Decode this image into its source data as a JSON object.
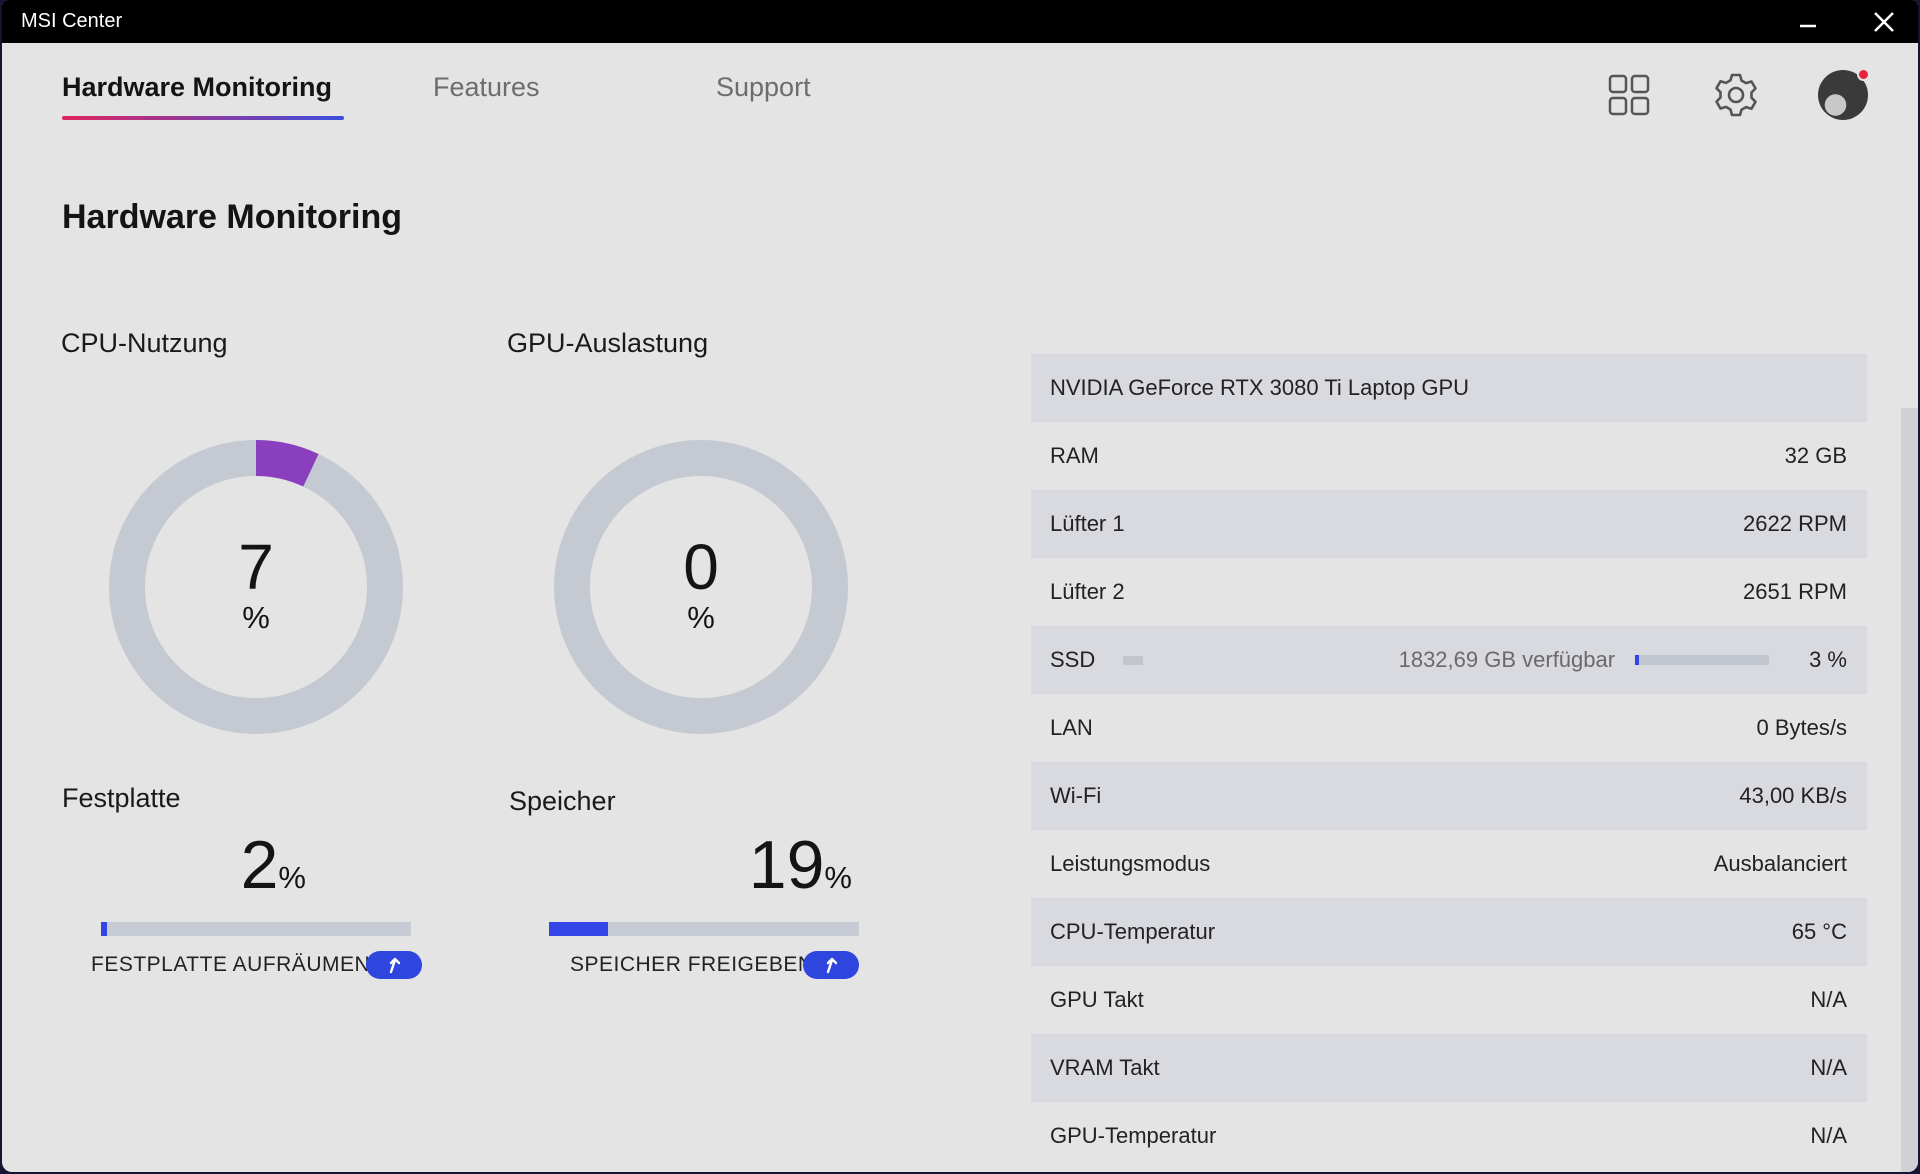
{
  "window": {
    "title": "MSI Center"
  },
  "tabs": [
    {
      "label": "Hardware Monitoring",
      "active": true
    },
    {
      "label": "Features",
      "active": false
    },
    {
      "label": "Support",
      "active": false
    }
  ],
  "header_icons": [
    "grid-icon",
    "gear-icon",
    "avatar"
  ],
  "page_title": "Hardware Monitoring",
  "cpu": {
    "title": "CPU-Nutzung",
    "value": "7",
    "unit": "%",
    "percent": 7,
    "accent": "#8a3fbf"
  },
  "gpu": {
    "title": "GPU-Auslastung",
    "value": "0",
    "unit": "%",
    "percent": 0
  },
  "disk": {
    "title": "Festplatte",
    "value": "2",
    "unit": "%",
    "percent": 2,
    "action": "FESTPLATTE AUFRÄUMEN"
  },
  "memory": {
    "title": "Speicher",
    "value": "19",
    "unit": "%",
    "percent": 19,
    "action": "SPEICHER FREIGEBEN"
  },
  "info": {
    "gpu_name": "NVIDIA GeForce RTX 3080 Ti Laptop GPU",
    "rows": [
      {
        "label": "RAM",
        "value": "32 GB"
      },
      {
        "label": "Lüfter 1",
        "value": "2622 RPM"
      },
      {
        "label": "Lüfter 2",
        "value": "2651 RPM"
      }
    ],
    "ssd": {
      "label": "SSD",
      "free": "1832,69 GB verfügbar",
      "value": "3 %",
      "percent": 3
    },
    "rows2": [
      {
        "label": "LAN",
        "value": "0 Bytes/s"
      },
      {
        "label": "Wi-Fi",
        "value": "43,00 KB/s"
      },
      {
        "label": "Leistungsmodus",
        "value": "Ausbalanciert"
      },
      {
        "label": "CPU-Temperatur",
        "value": "65 °C"
      },
      {
        "label": "GPU Takt",
        "value": "N/A"
      },
      {
        "label": "VRAM Takt",
        "value": "N/A"
      },
      {
        "label": "GPU-Temperatur",
        "value": "N/A"
      }
    ]
  },
  "colors": {
    "accent_blue": "#3345e6",
    "track": "#c7cbd3",
    "tab_underline_start": "#e0245e",
    "tab_underline_end": "#3a4fe0"
  }
}
